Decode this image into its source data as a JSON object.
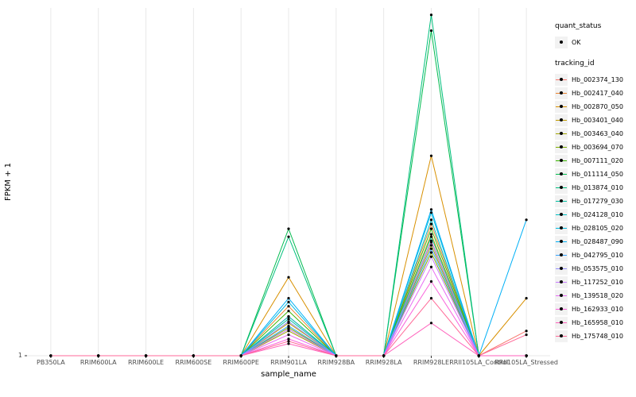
{
  "figure": {
    "background": "#ffffff",
    "panel_background": "#ffffff",
    "grid_color": "#e8e8e8",
    "tick_color": "#333333",
    "point_color": "#000000",
    "axis_text_color": "#4d4d4d",
    "y_tick_label": "1"
  },
  "legend": {
    "quant_status_title": "quant_status",
    "quant_status_items": [
      {
        "label": "OK",
        "symbol": "point"
      }
    ],
    "tracking_id_title": "tracking_id",
    "key_background": "#f2f2f2"
  },
  "chart_data": {
    "type": "line",
    "title": "",
    "xlabel": "sample_name",
    "ylabel": "FPKM + 1",
    "x_scale": "categorical",
    "y_scale": "log10",
    "ylim": [
      1,
      17000
    ],
    "y_ticks": [
      1
    ],
    "grid": true,
    "legend_position": "right",
    "point_shape": "filled-circle",
    "categories": [
      "PB350LA",
      "RRIM600LA",
      "RRIM600LE",
      "RRIM600SE",
      "RRIM600PE",
      "RRIM901LA",
      "RRIM928BA",
      "RRIM928LA",
      "RRIM928LE",
      "RRII105LA_Control",
      "RRII105LA_Stressed"
    ],
    "series": [
      {
        "name": "Hb_002374_130",
        "color": "#F8766D",
        "values": [
          1,
          1,
          1,
          1,
          1,
          3,
          1,
          1,
          25,
          1,
          2
        ]
      },
      {
        "name": "Hb_002417_040",
        "color": "#EA8331",
        "values": [
          1,
          1,
          1,
          1,
          1,
          4,
          1,
          1,
          40,
          1,
          1
        ]
      },
      {
        "name": "Hb_002870_050",
        "color": "#D89000",
        "values": [
          1,
          1,
          1,
          1,
          1,
          9,
          1,
          1,
          270,
          1,
          5
        ]
      },
      {
        "name": "Hb_003401_040",
        "color": "#C09B00",
        "values": [
          1,
          1,
          1,
          1,
          1,
          2.5,
          1,
          1,
          30,
          1,
          1
        ]
      },
      {
        "name": "Hb_003463_040",
        "color": "#A3A500",
        "values": [
          1,
          1,
          1,
          1,
          1,
          2,
          1,
          1,
          22,
          1,
          1
        ]
      },
      {
        "name": "Hb_003694_070",
        "color": "#7CAE00",
        "values": [
          1,
          1,
          1,
          1,
          1,
          2.2,
          1,
          1,
          18,
          1,
          1
        ]
      },
      {
        "name": "Hb_007111_020",
        "color": "#39B600",
        "values": [
          1,
          1,
          1,
          1,
          1,
          3.5,
          1,
          1,
          35,
          1,
          1
        ]
      },
      {
        "name": "Hb_011114_050",
        "color": "#00BB4E",
        "values": [
          1,
          1,
          1,
          1,
          1,
          35,
          1,
          1,
          9000,
          1,
          1
        ]
      },
      {
        "name": "Hb_013874_010",
        "color": "#00BF7D",
        "values": [
          1,
          1,
          1,
          1,
          1,
          28,
          1,
          1,
          14000,
          1,
          1
        ]
      },
      {
        "name": "Hb_017279_030",
        "color": "#00C1A3",
        "values": [
          1,
          1,
          1,
          1,
          1,
          2.8,
          1,
          1,
          28,
          1,
          1
        ]
      },
      {
        "name": "Hb_024128_010",
        "color": "#00BFC4",
        "values": [
          1,
          1,
          1,
          1,
          1,
          3,
          1,
          1,
          45,
          1,
          1
        ]
      },
      {
        "name": "Hb_028105_020",
        "color": "#00BAE0",
        "values": [
          1,
          1,
          1,
          1,
          1,
          4.5,
          1,
          1,
          55,
          1,
          1
        ]
      },
      {
        "name": "Hb_028487_090",
        "color": "#00B0F6",
        "values": [
          1,
          1,
          1,
          1,
          1,
          5,
          1,
          1,
          60,
          1,
          45
        ]
      },
      {
        "name": "Hb_042795_010",
        "color": "#35A2FF",
        "values": [
          1,
          1,
          1,
          1,
          1,
          2.3,
          1,
          1,
          20,
          1,
          1
        ]
      },
      {
        "name": "Hb_053575_010",
        "color": "#9590FF",
        "values": [
          1,
          1,
          1,
          1,
          1,
          2.6,
          1,
          1,
          24,
          1,
          1
        ]
      },
      {
        "name": "Hb_117252_010",
        "color": "#C77CFF",
        "values": [
          1,
          1,
          1,
          1,
          1,
          2.1,
          1,
          1,
          16,
          1,
          1
        ]
      },
      {
        "name": "Hb_139518_020",
        "color": "#E76BF3",
        "values": [
          1,
          1,
          1,
          1,
          1,
          1.8,
          1,
          1,
          12,
          1,
          1
        ]
      },
      {
        "name": "Hb_162933_010",
        "color": "#FA62DB",
        "values": [
          1,
          1,
          1,
          1,
          1,
          1.6,
          1,
          1,
          8,
          1,
          1
        ]
      },
      {
        "name": "Hb_165958_010",
        "color": "#FF62BC",
        "values": [
          1,
          1,
          1,
          1,
          1,
          1.4,
          1,
          1,
          2.5,
          1,
          1
        ]
      },
      {
        "name": "Hb_175748_010",
        "color": "#FF6A98",
        "values": [
          1,
          1,
          1,
          1,
          1,
          1.5,
          1,
          1,
          5,
          1,
          1.8
        ]
      }
    ]
  }
}
